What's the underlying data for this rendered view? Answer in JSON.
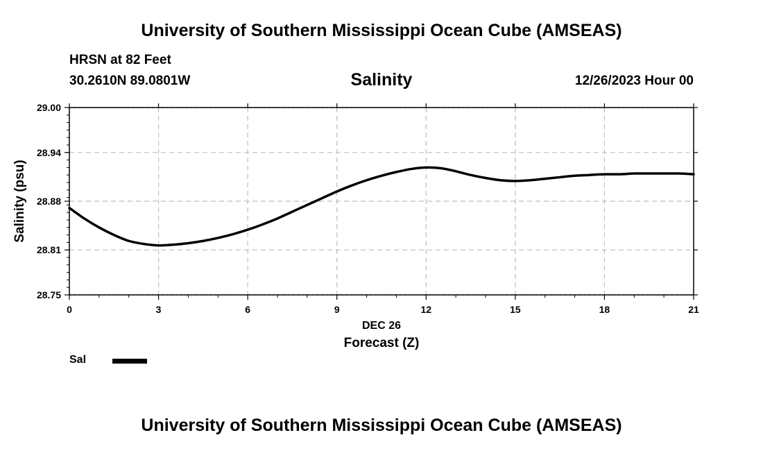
{
  "header": {
    "title": "University of Southern Mississippi Ocean Cube (AMSEAS)",
    "station": "HRSN at 82 Feet",
    "coords": "30.2610N  89.0801W",
    "subtitle": "Salinity",
    "datetime": "12/26/2023 Hour 00"
  },
  "footer": {
    "title": "University of Southern Mississippi Ocean Cube (AMSEAS)"
  },
  "legend": {
    "label": "Sal",
    "color": "#000000"
  },
  "chart_data": {
    "type": "line",
    "title": "Salinity",
    "xlabel": "Forecast (Z)",
    "xlabel_date": "DEC 26",
    "ylabel": "Salinity (psu)",
    "xlim": [
      0,
      21
    ],
    "ylim": [
      28.75,
      29.0
    ],
    "xticks": [
      0,
      3,
      6,
      9,
      12,
      15,
      18,
      21
    ],
    "xtick_labels": [
      "0",
      "3",
      "6",
      "9",
      "12",
      "15",
      "18",
      "21"
    ],
    "yticks": [
      28.75,
      28.81,
      28.875,
      28.94,
      29.0
    ],
    "ytick_labels": [
      "28.75",
      "28.81",
      "28.88",
      "28.94",
      "29.00"
    ],
    "grid": true,
    "series": [
      {
        "name": "Sal",
        "color": "#000000",
        "x": [
          0,
          0.5,
          1,
          1.5,
          2,
          2.5,
          3,
          3.5,
          4,
          4.5,
          5,
          5.5,
          6,
          6.5,
          7,
          7.5,
          8,
          8.5,
          9,
          9.5,
          10,
          10.5,
          11,
          11.5,
          12,
          12.5,
          13,
          13.5,
          14,
          14.5,
          15,
          15.5,
          16,
          16.5,
          17,
          17.5,
          18,
          18.5,
          19,
          19.5,
          20,
          20.5,
          21
        ],
        "values": [
          28.866,
          28.852,
          28.84,
          28.83,
          28.822,
          28.818,
          28.816,
          28.817,
          28.819,
          28.822,
          28.826,
          28.831,
          28.837,
          28.844,
          28.852,
          28.861,
          28.87,
          28.879,
          28.888,
          28.896,
          28.903,
          28.909,
          28.914,
          28.918,
          28.92,
          28.919,
          28.915,
          28.91,
          28.906,
          28.903,
          28.902,
          28.903,
          28.905,
          28.907,
          28.909,
          28.91,
          28.911,
          28.911,
          28.912,
          28.912,
          28.912,
          28.912,
          28.911
        ]
      }
    ]
  }
}
